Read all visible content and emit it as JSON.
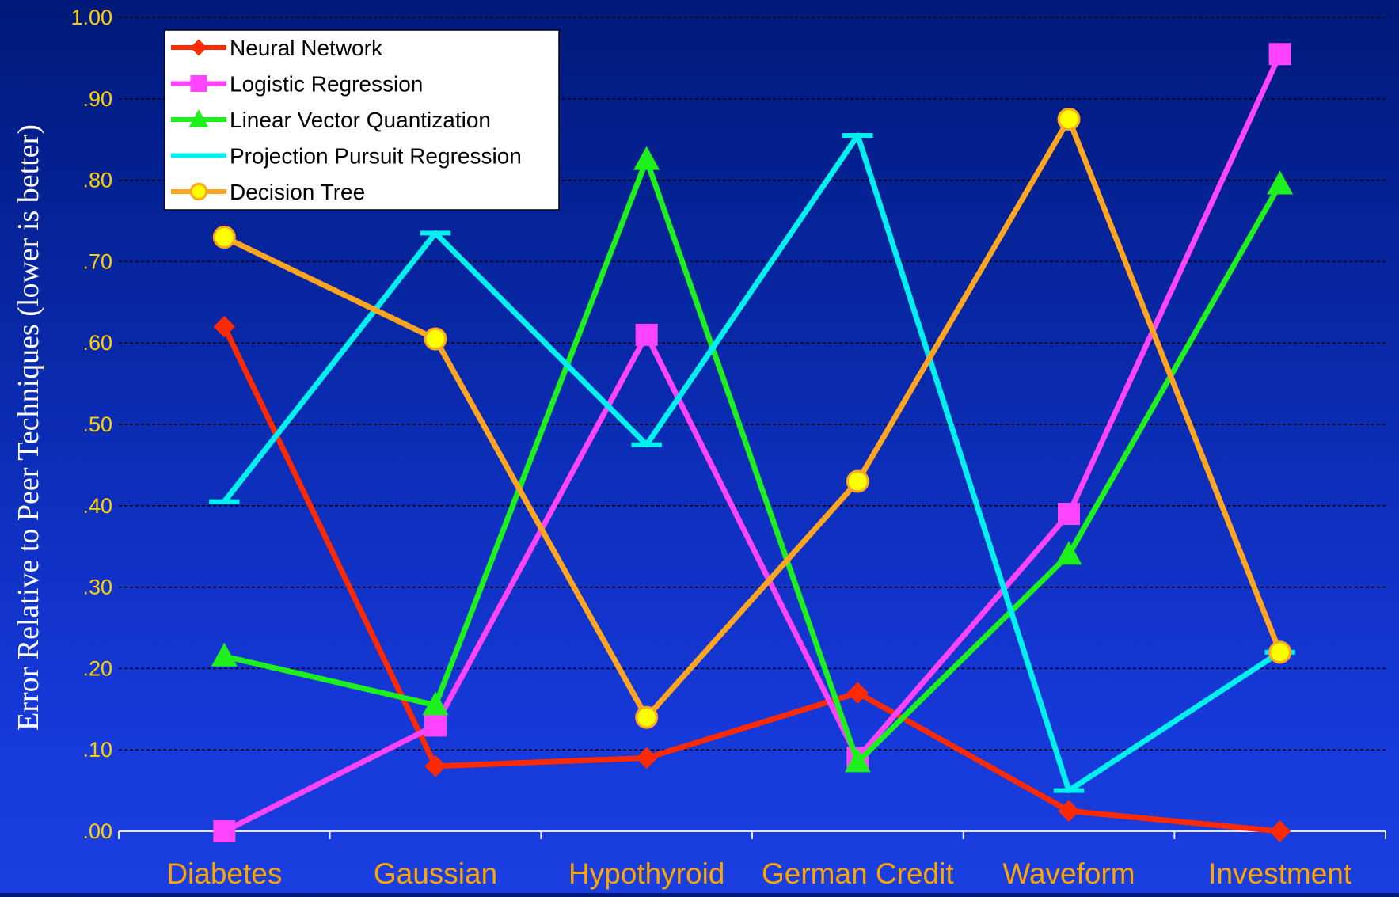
{
  "chart_data": {
    "type": "line",
    "ylabel": "Error Relative to Peer Techniques (lower is better)",
    "ylim": [
      0,
      1
    ],
    "yticks": [
      0,
      0.1,
      0.2,
      0.3,
      0.4,
      0.5,
      0.6,
      0.7,
      0.8,
      0.9,
      1.0
    ],
    "ytick_labels": [
      ".00",
      ".10",
      ".20",
      ".30",
      ".40",
      ".50",
      ".60",
      ".70",
      ".80",
      ".90",
      "1.00"
    ],
    "categories": [
      "Diabetes",
      "Gaussian",
      "Hypothyroid",
      "German Credit",
      "Waveform",
      "Investment"
    ],
    "grid": true,
    "legend_position": "top-left",
    "series": [
      {
        "name": "Neural Network",
        "color": "#ff2a00",
        "marker": "diamond",
        "values": [
          0.62,
          0.08,
          0.09,
          0.17,
          0.025,
          0.0
        ]
      },
      {
        "name": "Logistic Regression",
        "color": "#ff44ff",
        "marker": "square",
        "values": [
          0.0,
          0.13,
          0.61,
          0.09,
          0.39,
          0.955
        ]
      },
      {
        "name": "Linear Vector Quantization",
        "color": "#1ef01e",
        "marker": "triangle",
        "values": [
          0.215,
          0.155,
          0.825,
          0.085,
          0.34,
          0.795
        ]
      },
      {
        "name": "Projection Pursuit Regression",
        "color": "#00f0f0",
        "marker": "bar",
        "values": [
          0.405,
          0.735,
          0.475,
          0.855,
          0.05,
          0.22
        ]
      },
      {
        "name": "Decision Tree",
        "color": "#ffa520",
        "marker": "circle",
        "values": [
          0.73,
          0.605,
          0.14,
          0.43,
          0.875,
          0.22
        ]
      }
    ],
    "colors": {
      "tick_text": "#ffd000",
      "category_text": "#ffa500",
      "grid": "#000000",
      "axis": "#e8e8ff",
      "ylabel": "#ffffff",
      "legend_bg": "#ffffff",
      "legend_text": "#000000",
      "circle_fill": "#ffff00"
    }
  }
}
